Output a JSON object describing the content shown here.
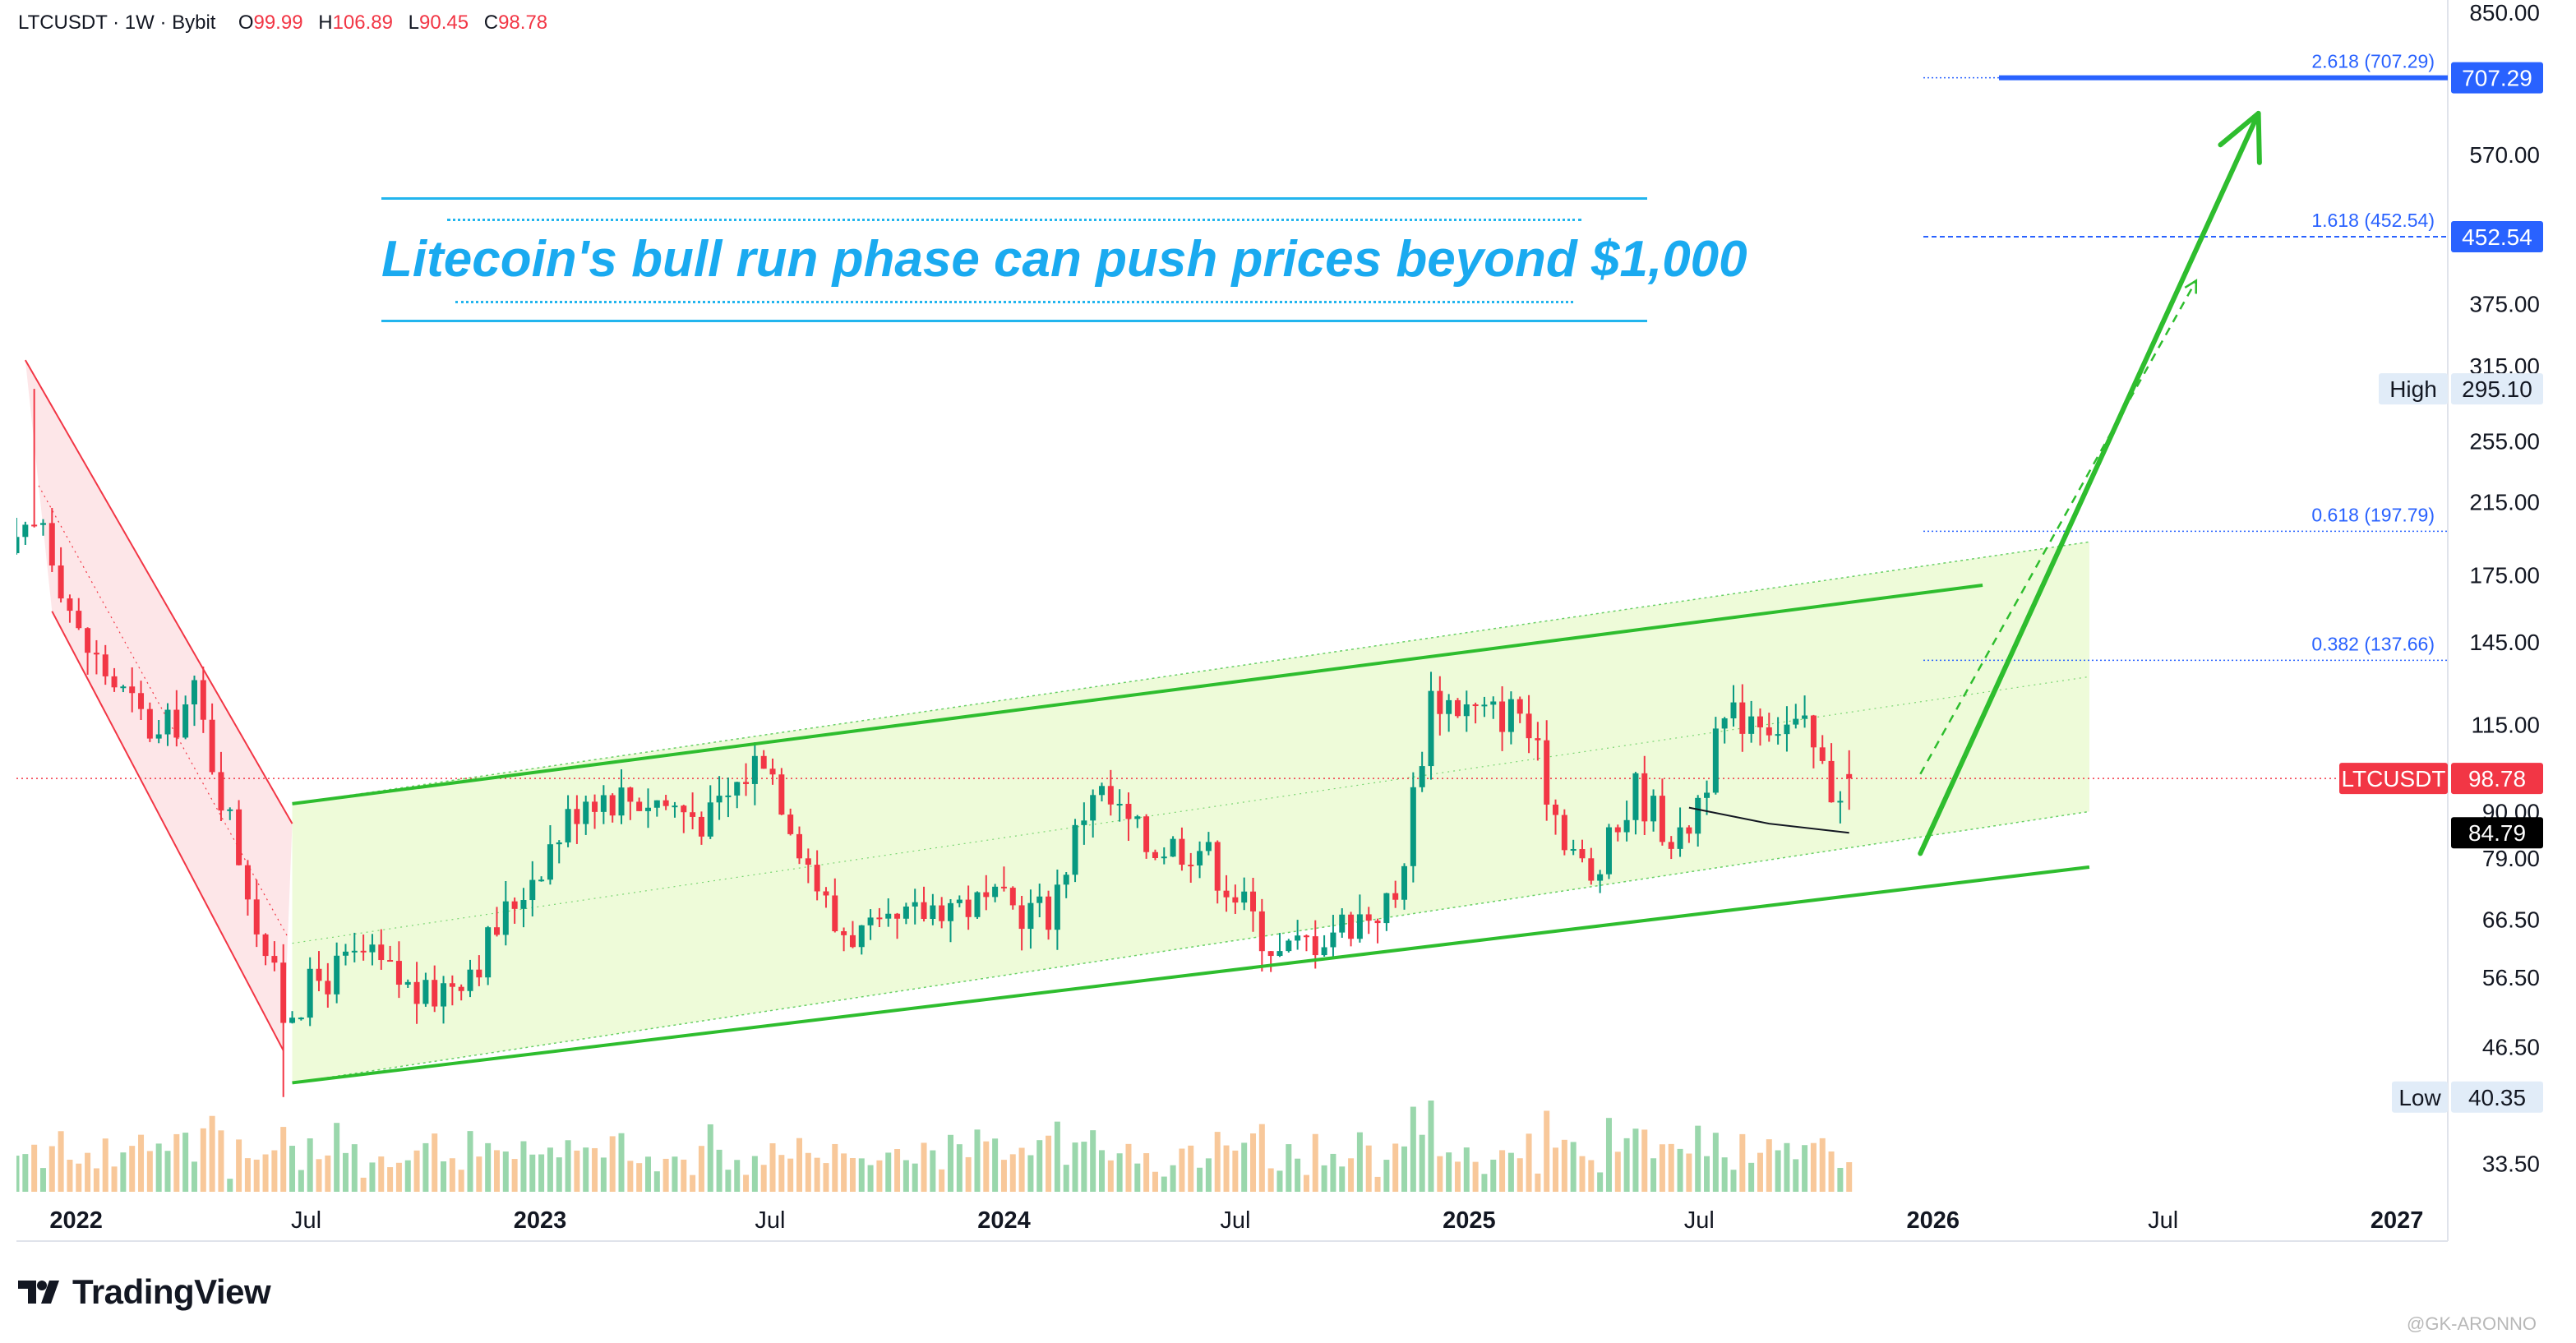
{
  "header": {
    "symbol": "LTCUSDT · 1W · Bybit",
    "open_label": "O",
    "open": "99.99",
    "high_label": "H",
    "high": "106.89",
    "low_label": "L",
    "low": "90.45",
    "close_label": "C",
    "close": "98.78"
  },
  "annotation": {
    "title": "Litecoin's bull run phase can push prices beyond $1,000"
  },
  "brand": {
    "name": "TradingView"
  },
  "watermark": "@GK-ARONNO",
  "colors": {
    "up": "#089981",
    "down": "#f23645",
    "channel": "#2ebd2e",
    "channel_fill": "#eefbd9",
    "down_channel": "#f23645",
    "fib": "#2962ff",
    "title": "#1aaaf0",
    "arrow": "#2ebd2e"
  },
  "chart_data": {
    "type": "candlestick",
    "timeframe": "1W",
    "y_scale": "log",
    "ylim": [
      30.5,
      880
    ],
    "y_ticks": [
      "850.00",
      "570.00",
      "375.00",
      "315.00",
      "255.00",
      "215.00",
      "175.00",
      "145.00",
      "115.00",
      "90.00",
      "79.00",
      "66.50",
      "56.50",
      "46.50",
      "33.50"
    ],
    "x_range": [
      "2021-11-15",
      "2027-02-10"
    ],
    "x_ticks": [
      {
        "label": "2022",
        "date": "2022-01-01",
        "bold": true
      },
      {
        "label": "Jul",
        "date": "2022-07-01",
        "bold": false
      },
      {
        "label": "2023",
        "date": "2023-01-01",
        "bold": true
      },
      {
        "label": "Jul",
        "date": "2023-07-01",
        "bold": false
      },
      {
        "label": "2024",
        "date": "2024-01-01",
        "bold": true
      },
      {
        "label": "Jul",
        "date": "2024-07-01",
        "bold": false
      },
      {
        "label": "2025",
        "date": "2025-01-01",
        "bold": true
      },
      {
        "label": "Jul",
        "date": "2025-07-01",
        "bold": false
      },
      {
        "label": "2026",
        "date": "2026-01-01",
        "bold": true
      },
      {
        "label": "Jul",
        "date": "2026-07-01",
        "bold": false
      },
      {
        "label": "2027",
        "date": "2027-01-01",
        "bold": true
      }
    ],
    "price_anchors": [
      [
        "2021-11-15",
        186
      ],
      [
        "2021-12-06",
        205
      ],
      [
        "2022-01-03",
        147
      ],
      [
        "2022-02-07",
        125
      ],
      [
        "2022-03-07",
        110
      ],
      [
        "2022-04-04",
        125
      ],
      [
        "2022-05-09",
        80
      ],
      [
        "2022-06-13",
        51
      ],
      [
        "2022-07-11",
        56
      ],
      [
        "2022-08-15",
        60
      ],
      [
        "2022-10-03",
        53
      ],
      [
        "2022-11-14",
        60
      ],
      [
        "2022-12-19",
        73
      ],
      [
        "2023-02-06",
        95
      ],
      [
        "2023-04-03",
        93
      ],
      [
        "2023-05-15",
        88
      ],
      [
        "2023-06-26",
        107
      ],
      [
        "2023-08-21",
        65
      ],
      [
        "2023-09-25",
        63
      ],
      [
        "2023-11-13",
        70
      ],
      [
        "2024-02-05",
        68
      ],
      [
        "2024-03-11",
        97
      ],
      [
        "2024-04-22",
        82
      ],
      [
        "2024-06-03",
        82
      ],
      [
        "2024-08-05",
        60
      ],
      [
        "2024-09-16",
        65
      ],
      [
        "2024-11-04",
        70
      ],
      [
        "2024-12-02",
        125
      ],
      [
        "2025-01-13",
        118
      ],
      [
        "2025-02-10",
        120
      ],
      [
        "2025-03-10",
        90
      ],
      [
        "2025-04-07",
        73
      ],
      [
        "2025-05-12",
        96
      ],
      [
        "2025-06-16",
        82
      ],
      [
        "2025-07-21",
        115
      ],
      [
        "2025-08-11",
        120
      ],
      [
        "2025-09-22",
        112
      ],
      [
        "2025-10-13",
        96
      ],
      [
        "2025-10-27",
        98.78
      ]
    ],
    "last_candle": {
      "open": 99.99,
      "high": 106.89,
      "low": 90.45,
      "close": 98.78
    },
    "period_high": 295.1,
    "period_low": 40.35,
    "channel": {
      "upper": [
        [
          "2022-06-20",
          92
        ],
        [
          "2026-02-09",
          170
        ]
      ],
      "lower": [
        [
          "2022-06-20",
          42
        ],
        [
          "2026-05-04",
          77
        ]
      ],
      "projection_upper": [
        [
          "2026-05-04",
          192
        ]
      ],
      "projection_lower": [
        [
          "2026-05-04",
          90
        ]
      ]
    },
    "down_channel": {
      "upper": [
        [
          "2021-11-22",
          320
        ],
        [
          "2022-06-20",
          87
        ]
      ],
      "lower": [
        [
          "2021-12-13",
          158
        ],
        [
          "2022-06-13",
          46
        ]
      ]
    },
    "moving_average": [
      [
        "2025-06-23",
        91
      ],
      [
        "2025-08-25",
        87
      ],
      [
        "2025-10-27",
        84.79
      ]
    ],
    "fib_levels": [
      {
        "ratio": "0.382",
        "price": 137.66,
        "label": "0.382 (137.66)"
      },
      {
        "ratio": "0.618",
        "price": 197.79,
        "label": "0.618 (197.79)"
      },
      {
        "ratio": "1.618",
        "price": 452.54,
        "label": "1.618 (452.54)"
      },
      {
        "ratio": "2.618",
        "price": 707.29,
        "label": "2.618 (707.29)"
      }
    ],
    "arrows": {
      "solid": [
        [
          "2025-12-22",
          80
        ],
        [
          "2026-09-14",
          640
        ]
      ],
      "dashed": [
        [
          "2025-12-22",
          100
        ],
        [
          "2026-07-27",
          400
        ]
      ]
    },
    "price_tags": [
      {
        "prefix": "",
        "value": "707.29",
        "price": 707.29,
        "bg": "#2962ff",
        "fg": "#ffffff"
      },
      {
        "prefix": "",
        "value": "452.54",
        "price": 452.54,
        "bg": "#2962ff",
        "fg": "#ffffff"
      },
      {
        "prefix": "High",
        "value": "295.10",
        "price": 295.1,
        "bg": "#e1ecf8",
        "fg": "#131722"
      },
      {
        "prefix": "LTCUSDT",
        "value": "98.78",
        "price": 98.78,
        "bg": "#f23645",
        "fg": "#ffffff"
      },
      {
        "prefix": "",
        "value": "84.79",
        "price": 84.79,
        "bg": "#000000",
        "fg": "#ffffff"
      },
      {
        "prefix": "Low",
        "value": "40.35",
        "price": 40.35,
        "bg": "#e1ecf8",
        "fg": "#131722"
      }
    ]
  }
}
